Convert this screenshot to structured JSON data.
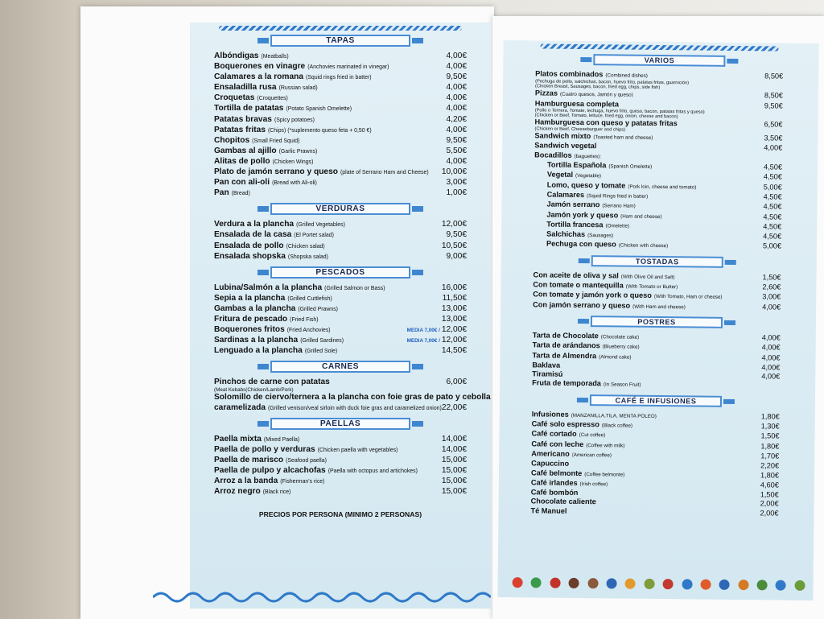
{
  "left": {
    "sections": [
      {
        "title": "TAPAS",
        "items": [
          {
            "name": "Albóndigas",
            "note": "(Meatballs)",
            "price": "4,00€"
          },
          {
            "name": "Boquerones en vinagre",
            "note": "(Anchovies marinated in vinegar)",
            "price": "4,00€"
          },
          {
            "name": "Calamares a la romana",
            "note": "(Squid rings fried in batter)",
            "price": "9,50€"
          },
          {
            "name": "Ensaladilla rusa",
            "note": "(Russian salad)",
            "price": "4,00€"
          },
          {
            "name": "Croquetas",
            "note": "(Croquettes)",
            "price": "4,00€"
          },
          {
            "name": "Tortilla de patatas",
            "note": "(Potato Spanish Omelette)",
            "price": "4,00€"
          },
          {
            "name": "Patatas bravas",
            "note": "(Spicy potatoes)",
            "price": "4,20€"
          },
          {
            "name": "Patatas fritas",
            "note": "(Chips) (*suplemento queso feta + 0,50 €)",
            "price": "4,00€"
          },
          {
            "name": "Chopitos",
            "note": "(Small Fried Squid)",
            "price": "9,50€"
          },
          {
            "name": "Gambas al ajillo",
            "note": "(Garlic Prawns)",
            "price": "5,50€"
          },
          {
            "name": "Alitas de pollo",
            "note": "(Chicken Wings)",
            "price": "4,00€"
          },
          {
            "name": "Plato de jamón serrano y queso",
            "note": "(plate of Serrano Ham and Cheese)",
            "price": "10,00€"
          },
          {
            "name": "Pan con ali-oli",
            "note": "(Bread with Ali-oli)",
            "price": "3,00€"
          },
          {
            "name": "Pan",
            "note": "(Bread)",
            "price": "1,00€"
          }
        ]
      },
      {
        "title": "VERDURAS",
        "items": [
          {
            "name": "Verdura a la plancha",
            "note": "(Grilled Vegetables)",
            "price": "12,00€"
          },
          {
            "name": "Ensalada de la casa",
            "note": "(El Portet salad)",
            "price": "9,50€"
          },
          {
            "name": "Ensalada de pollo",
            "note": "(Chicken salad)",
            "price": "10,50€"
          },
          {
            "name": "Ensalada shopska",
            "note": "(Shopska salad)",
            "price": "9,00€"
          }
        ]
      },
      {
        "title": "PESCADOS",
        "items": [
          {
            "name": "Lubina/Salmón a la plancha",
            "note": "(Grilled Salmon or Bass)",
            "price": "16,00€"
          },
          {
            "name": "Sepia a la plancha",
            "note": "(Grilled Cuttlefish)",
            "price": "11,50€"
          },
          {
            "name": "Gambas a la plancha",
            "note": "(Grilled Prawns)",
            "price": "13,00€"
          },
          {
            "name": "Fritura de pescado",
            "note": "(Fried Fish)",
            "price": "13,00€"
          },
          {
            "name": "Boquerones fritos",
            "note": "(Fried Anchovies)",
            "half": "MEDIA 7,00€ /",
            "price": "12,00€"
          },
          {
            "name": "Sardinas a la plancha",
            "note": "(Grilled Sardines)",
            "half": "MEDIA 7,00€ /",
            "price": "12,00€"
          },
          {
            "name": "Lenguado a la plancha",
            "note": "(Grilled Sole)",
            "price": "14,50€"
          }
        ]
      },
      {
        "title": "CARNES",
        "items": [
          {
            "name": "Pinchos de carne con patatas",
            "price": "6,00€",
            "desc": [
              "(Meat Kebabs(Chicken/Lamb/Pork)"
            ]
          },
          {
            "name": "Solomillo de ciervo/ternera a la plancha con foie gras de pato y cebolla"
          },
          {
            "name": "caramelizada",
            "note": "(Grilled venison/veal sirloin with duck foie gras and caramelized onion)",
            "price": "22,00€"
          }
        ]
      },
      {
        "title": "PAELLAS",
        "items": [
          {
            "name": "Paella mixta",
            "note": "(Mixed Paella)",
            "price": "14,00€"
          },
          {
            "name": "Paella de pollo y verduras",
            "note": "(Chicken paella with vegetables)",
            "price": "14,00€"
          },
          {
            "name": "Paella de marisco",
            "note": "(Seafood paella)",
            "price": "15,00€"
          },
          {
            "name": "Paella de pulpo y alcachofas",
            "note": "(Paella with octopus and artichokes)",
            "price": "15,00€"
          },
          {
            "name": "Arroz a la banda",
            "note": "(Fisherman's rice)",
            "price": "15,00€"
          },
          {
            "name": "Arroz negro",
            "note": "(Black rice)",
            "price": "15,00€"
          }
        ]
      }
    ],
    "footer": "PRECIOS POR PERSONA (MINIMO 2 PERSONAS)"
  },
  "right": {
    "sections": [
      {
        "title": "VARIOS",
        "items": [
          {
            "name": "Platos combinados",
            "note": "(Combined dishes)",
            "price": "8,50€",
            "desc": [
              "(Pechuga de pollo, salchichas, bacon, huevo frito, patatas fritas, guarnición)",
              "(Chicken Breast, Sausages, bacon, fried egg, chips, side fish)"
            ]
          },
          {
            "name": "Pizzas",
            "note": "(Cuatro quesos, Jamón y queso)",
            "price": "8,50€"
          },
          {
            "name": "Hamburguesa completa",
            "price": "9,50€",
            "desc": [
              "(Pollo o Ternera, Tomate, lechuga, huevo frito, queso, bacon, patatas fritas y queso)",
              "(Chicken or Beef, Tomato, lettuce, fried egg, onion, cheese and bacon)"
            ]
          },
          {
            "name": "Hamburguesa con queso y patatas fritas",
            "desc": [
              "(Chicken or Beef, Cheeseburguer and chips)"
            ],
            "price": "6,50€"
          },
          {
            "name": "Sandwich mixto",
            "note": "(Toasted ham and cheese)",
            "price": "3,50€"
          },
          {
            "name": "Sandwich vegetal",
            "price": "4,00€"
          },
          {
            "name": "Bocadillos",
            "note": "(baguettes):",
            "items": [
              {
                "name": "Tortilla Española",
                "note": "(Spanish Omelette)",
                "price": "4,50€"
              },
              {
                "name": "Vegetal",
                "note": "(Vegetable)",
                "price": "4,50€"
              },
              {
                "name": "Lomo, queso y tomate",
                "note": "(Pork loin, cheese and tomato)",
                "price": "5,00€"
              },
              {
                "name": "Calamares",
                "note": "(Squid Rings fried in batter)",
                "price": "4,50€"
              },
              {
                "name": "Jamón serrano",
                "note": "(Serrano Ham)",
                "price": "4,50€"
              },
              {
                "name": "Jamón york y queso",
                "note": "(Ham and cheese)",
                "price": "4,50€"
              },
              {
                "name": "Tortilla francesa",
                "note": "(Omelette)",
                "price": "4,50€"
              },
              {
                "name": "Salchichas",
                "note": "(Sausages)",
                "price": "4,50€"
              },
              {
                "name": "Pechuga con queso",
                "note": "(Chicken with cheese)",
                "price": "5,00€"
              }
            ]
          }
        ]
      },
      {
        "title": "TOSTADAS",
        "items": [
          {
            "name": "Con aceite de oliva y sal",
            "note": "(With Olive Oil and Salt)",
            "price": "1,50€"
          },
          {
            "name": "Con tomate o mantequilla",
            "note": "(With Tomato or Butter)",
            "price": "2,60€"
          },
          {
            "name": "Con tomate y jamón york o queso",
            "note": "(With Tomato, Ham or cheese)",
            "price": "3,00€"
          },
          {
            "name": "Con jamón serrano y queso",
            "note": "(With Ham and cheese)",
            "price": "4,00€"
          }
        ]
      },
      {
        "title": "POSTRES",
        "items": [
          {
            "name": "Tarta de Chocolate",
            "note": "(Chocolate cake)",
            "price": "4,00€"
          },
          {
            "name": "Tarta de arándanos",
            "note": "(Blueberry cake)",
            "price": "4,00€"
          },
          {
            "name": "Tarta de Almendra",
            "note": "(Almond cake)",
            "price": "4,00€"
          },
          {
            "name": "Baklava",
            "price": "4,00€"
          },
          {
            "name": "Tiramisú",
            "price": "4,00€"
          },
          {
            "name": "Fruta de temporada",
            "note": "(In Season Fruit)"
          }
        ]
      },
      {
        "title": "CAFÉ E INFUSIONES",
        "items": [
          {
            "name": "Infusiones",
            "note": "(MANZANILLA,TILA, MENTA POLEO)",
            "price": "1,80€"
          },
          {
            "name": "Café solo espresso",
            "note": "(Black coffee)",
            "price": "1,30€"
          },
          {
            "name": "Café cortado",
            "note": "(Cut coffee)",
            "price": "1,50€"
          },
          {
            "name": "Café con leche",
            "note": "(Coffee with milk)",
            "price": "1,80€"
          },
          {
            "name": "Americano",
            "note": "(American coffee)",
            "price": "1,70€"
          },
          {
            "name": "Capuccino",
            "price": "2,20€"
          },
          {
            "name": "Café belmonte",
            "note": "(Coffee belmonte)",
            "price": "1,80€"
          },
          {
            "name": "Café irlandes",
            "note": "(Irish coffee)",
            "price": "4,60€"
          },
          {
            "name": "Café bombón",
            "price": "1,50€"
          },
          {
            "name": "Chocolate caliente",
            "price": "2,00€"
          },
          {
            "name": "Té Manuel",
            "price": "2,00€"
          }
        ]
      }
    ]
  }
}
